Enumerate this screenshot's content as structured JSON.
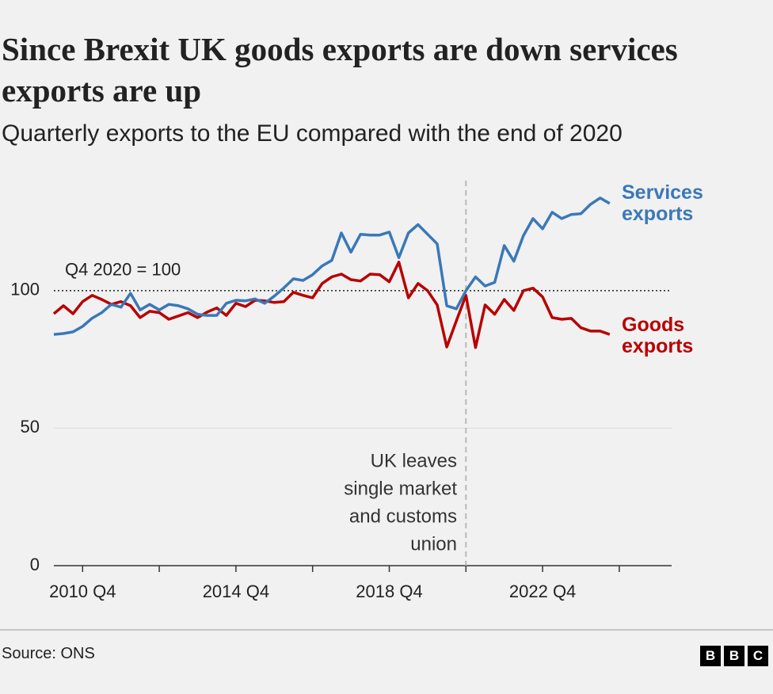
{
  "chart_data": {
    "type": "line",
    "title": "Since Brexit UK goods exports are down services exports are up",
    "subtitle": "Quarterly exports to the EU compared with the end of 2020",
    "categories": [
      null,
      null,
      null,
      "2010 Q4",
      null,
      null,
      null,
      null,
      null,
      null,
      null,
      null,
      null,
      null,
      null,
      null,
      null,
      null,
      null,
      "2014 Q4",
      null,
      null,
      null,
      null,
      null,
      null,
      null,
      null,
      null,
      null,
      null,
      null,
      null,
      null,
      null,
      "2018 Q4",
      null,
      null,
      null,
      null,
      null,
      null,
      null,
      null,
      null,
      null,
      null,
      null,
      null,
      null,
      null,
      "2022 Q4",
      null,
      null,
      null,
      null,
      null,
      null,
      null
    ],
    "series": [
      {
        "name": "Services exports",
        "color": "#3a78b8",
        "values": [
          84.1,
          84.4,
          85,
          87,
          90,
          92,
          95,
          94,
          99,
          93,
          95,
          93,
          95,
          94.5,
          93.4,
          91.4,
          91,
          91,
          95.4,
          96.5,
          96.3,
          97,
          95.4,
          98,
          101,
          104.3,
          103.7,
          105.8,
          109,
          111,
          121,
          114,
          120.5,
          120.2,
          120.2,
          121.3,
          112,
          121,
          124,
          120.5,
          117,
          94.5,
          93.4,
          100,
          105,
          101.7,
          103,
          116.4,
          110.7,
          120,
          126.2,
          122.5,
          128.5,
          126.2,
          127.7,
          128,
          131.4,
          133.7,
          131.7
        ]
      },
      {
        "name": "Goods exports",
        "color": "#b80000",
        "values": [
          91.6,
          94.5,
          91.6,
          96,
          98.3,
          96.8,
          95,
          96,
          94.5,
          90.2,
          92.5,
          92,
          89.6,
          90.8,
          92,
          90.2,
          92.2,
          93.7,
          91,
          95.4,
          94.2,
          96.5,
          96.3,
          95.7,
          96,
          99.4,
          98.3,
          97.4,
          102.6,
          105,
          106,
          104,
          103.5,
          106,
          105.8,
          103.2,
          110.4,
          97.4,
          102.6,
          100,
          94.8,
          79.5,
          89,
          98.3,
          79.3,
          94.8,
          91.4,
          96.8,
          92.8,
          100,
          100.9,
          97.7,
          90.2,
          89.6,
          89.9,
          86.5,
          85.3,
          85.3,
          84.1
        ]
      }
    ],
    "ylim": [
      0,
      140
    ],
    "yticks": [
      0,
      50,
      100
    ],
    "grid": true,
    "reference_line": {
      "value": 100,
      "label": "Q4 2020 = 100"
    },
    "annotation": [
      "UK leaves",
      "single market",
      "and customs",
      "union"
    ],
    "source": "Source: ONS",
    "logo": [
      "B",
      "B",
      "C"
    ]
  }
}
